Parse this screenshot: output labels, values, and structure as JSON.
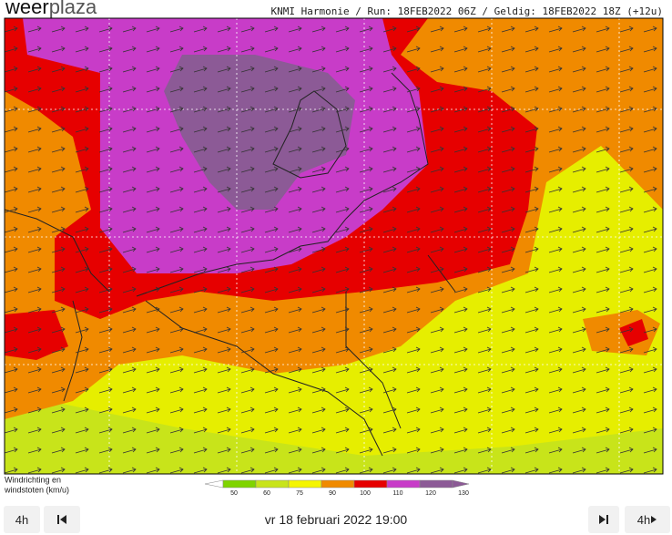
{
  "header": {
    "logo": [
      "weer",
      "plaza"
    ],
    "info": "KNMI Harmonie / Run: 18FEB2022 06Z / Geldig: 18FEB2022 18Z (+12u)"
  },
  "legend": {
    "label": [
      "Windrichting en",
      "windstoten (km/u)"
    ],
    "ticks": [
      50,
      60,
      75,
      90,
      100,
      110,
      120,
      130
    ]
  },
  "controls": {
    "step_back": "4h",
    "date": "vr 18 februari 2022 19:00",
    "step_forward": "4h"
  }
}
